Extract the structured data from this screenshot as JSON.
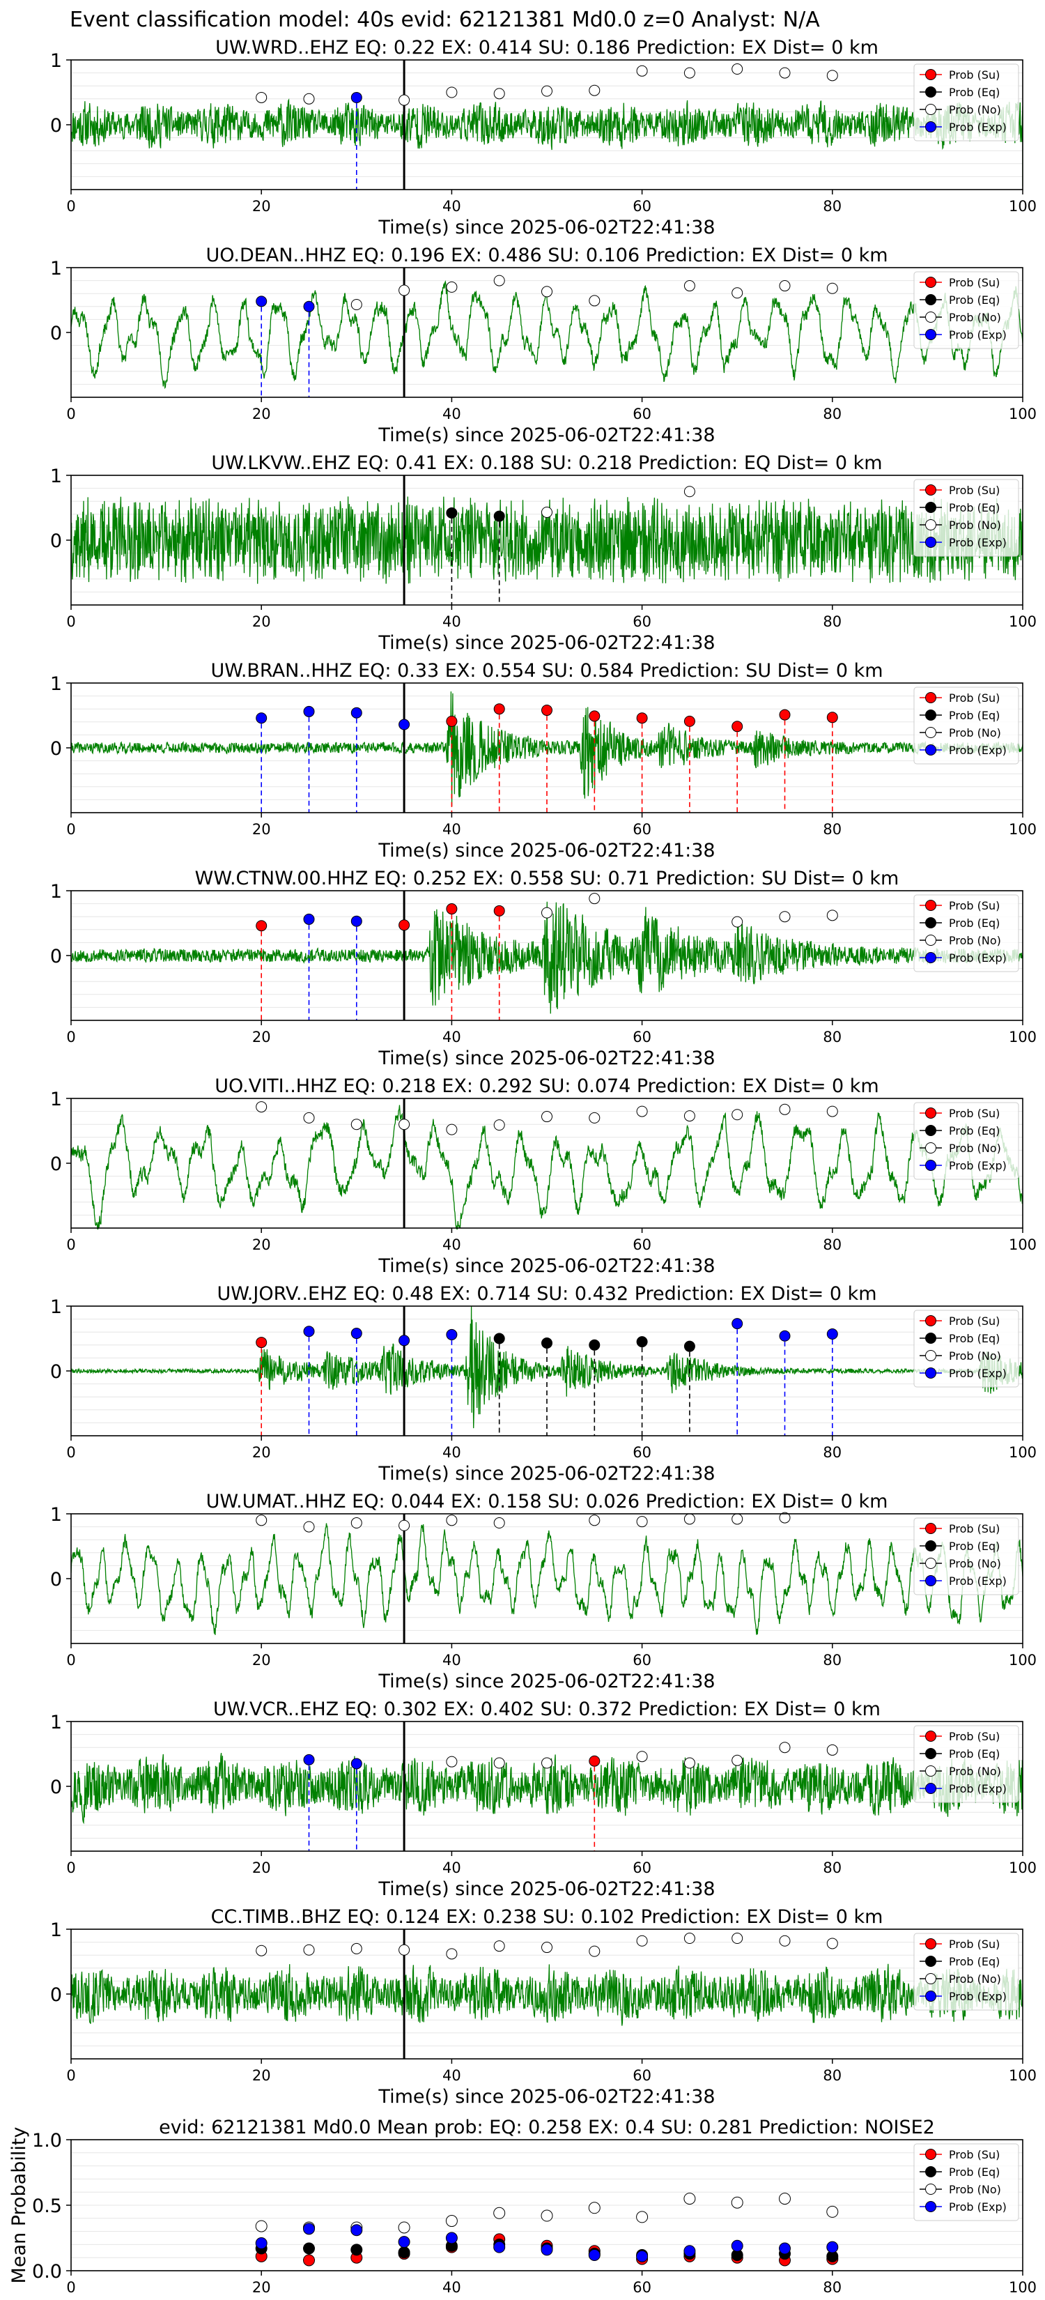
{
  "figure": {
    "suptitle": "Event classification model: 40s evid: 62121381 Md0.0 z=0 Analyst: N/A"
  },
  "legend": {
    "entries": [
      {
        "label": "Prob (Su)",
        "color": "#ff0000",
        "fill": "#ff0000"
      },
      {
        "label": "Prob (Eq)",
        "color": "#000000",
        "fill": "#000000"
      },
      {
        "label": "Prob (No)",
        "color": "#000000",
        "fill": "#ffffff"
      },
      {
        "label": "Prob (Exp)",
        "color": "#0000ff",
        "fill": "#0000ff"
      }
    ],
    "placement": "upper-right"
  },
  "colors": {
    "waveform": "#008000",
    "pick_line": "#000000",
    "su": "#ff0000",
    "eq": "#000000",
    "exp": "#0000ff",
    "noise_face": "#ffffff"
  },
  "chart_data": [
    {
      "type": "line",
      "title": "UW.WRD..EHZ   EQ: 0.22  EX: 0.414  SU: 0.186   Prediction: EX    Dist= 0 km",
      "xlabel": "Time(s) since 2025-06-02T22:41:38",
      "ylabel": "",
      "xlim": [
        0,
        100
      ],
      "ylim": [
        -1,
        1
      ],
      "xticks": [
        "0",
        "20",
        "40",
        "60",
        "80",
        "100"
      ],
      "yticks": [
        "1",
        "0"
      ],
      "pick_time": 35,
      "waveform": {
        "style": "noise",
        "amp": 0.32,
        "seed": 11,
        "end_spike": true
      },
      "windows": [
        {
          "t": 20,
          "cls": "No",
          "p": 0.42
        },
        {
          "t": 25,
          "cls": "No",
          "p": 0.4
        },
        {
          "t": 30,
          "cls": "Exp",
          "p": 0.42
        },
        {
          "t": 35,
          "cls": "No",
          "p": 0.38
        },
        {
          "t": 40,
          "cls": "No",
          "p": 0.5
        },
        {
          "t": 45,
          "cls": "No",
          "p": 0.48
        },
        {
          "t": 50,
          "cls": "No",
          "p": 0.52
        },
        {
          "t": 55,
          "cls": "No",
          "p": 0.53
        },
        {
          "t": 60,
          "cls": "No",
          "p": 0.83
        },
        {
          "t": 65,
          "cls": "No",
          "p": 0.8
        },
        {
          "t": 70,
          "cls": "No",
          "p": 0.86
        },
        {
          "t": 75,
          "cls": "No",
          "p": 0.8
        },
        {
          "t": 80,
          "cls": "No",
          "p": 0.76
        }
      ]
    },
    {
      "type": "line",
      "title": "UO.DEAN..HHZ   EQ: 0.196  EX: 0.486  SU: 0.106   Prediction: EX    Dist= 0 km",
      "xlabel": "Time(s) since 2025-06-02T22:41:38",
      "ylabel": "",
      "xlim": [
        0,
        100
      ],
      "ylim": [
        -1,
        1
      ],
      "xticks": [
        "0",
        "20",
        "40",
        "60",
        "80",
        "100"
      ],
      "yticks": [
        "1",
        "0"
      ],
      "pick_time": 35,
      "waveform": {
        "style": "wave",
        "amp": 0.55,
        "seed": 23,
        "period": 3.5
      },
      "windows": [
        {
          "t": 20,
          "cls": "Exp",
          "p": 0.48
        },
        {
          "t": 25,
          "cls": "Exp",
          "p": 0.4
        },
        {
          "t": 30,
          "cls": "No",
          "p": 0.43
        },
        {
          "t": 35,
          "cls": "No",
          "p": 0.65
        },
        {
          "t": 40,
          "cls": "No",
          "p": 0.7
        },
        {
          "t": 45,
          "cls": "No",
          "p": 0.8
        },
        {
          "t": 50,
          "cls": "No",
          "p": 0.63
        },
        {
          "t": 55,
          "cls": "No",
          "p": 0.49
        },
        {
          "t": 65,
          "cls": "No",
          "p": 0.72
        },
        {
          "t": 70,
          "cls": "No",
          "p": 0.61
        },
        {
          "t": 75,
          "cls": "No",
          "p": 0.72
        },
        {
          "t": 80,
          "cls": "No",
          "p": 0.68
        }
      ]
    },
    {
      "type": "line",
      "title": "UW.LKVW..EHZ   EQ: 0.41  EX: 0.188  SU: 0.218   Prediction: EQ    Dist= 0 km",
      "xlabel": "Time(s) since 2025-06-02T22:41:38",
      "ylabel": "",
      "xlim": [
        0,
        100
      ],
      "ylim": [
        -1,
        1
      ],
      "xticks": [
        "0",
        "20",
        "40",
        "60",
        "80",
        "100"
      ],
      "yticks": [
        "1",
        "0"
      ],
      "pick_time": 35,
      "waveform": {
        "style": "dense",
        "amp": 0.62,
        "seed": 37
      },
      "windows": [
        {
          "t": 40,
          "cls": "Eq",
          "p": 0.42
        },
        {
          "t": 45,
          "cls": "Eq",
          "p": 0.37
        },
        {
          "t": 50,
          "cls": "No",
          "p": 0.43
        },
        {
          "t": 65,
          "cls": "No",
          "p": 0.75
        }
      ]
    },
    {
      "type": "line",
      "title": "UW.BRAN..HHZ   EQ: 0.33  EX: 0.554  SU: 0.584   Prediction: SU    Dist= 0 km",
      "xlabel": "Time(s) since 2025-06-02T22:41:38",
      "ylabel": "",
      "xlim": [
        0,
        100
      ],
      "ylim": [
        -1,
        1
      ],
      "xticks": [
        "0",
        "20",
        "40",
        "60",
        "80",
        "100"
      ],
      "yticks": [
        "1",
        "0"
      ],
      "pick_time": 35,
      "waveform": {
        "style": "bursts",
        "amp": 0.08,
        "seed": 41,
        "bursts": [
          [
            40,
            0.9,
            3.5
          ],
          [
            54,
            0.85,
            2.5
          ],
          [
            62,
            0.35,
            3
          ],
          [
            72,
            0.25,
            3
          ]
        ]
      },
      "windows": [
        {
          "t": 20,
          "cls": "Exp",
          "p": 0.46
        },
        {
          "t": 25,
          "cls": "Exp",
          "p": 0.56
        },
        {
          "t": 30,
          "cls": "Exp",
          "p": 0.54
        },
        {
          "t": 35,
          "cls": "Exp",
          "p": 0.36
        },
        {
          "t": 40,
          "cls": "Su",
          "p": 0.41
        },
        {
          "t": 45,
          "cls": "Su",
          "p": 0.6
        },
        {
          "t": 50,
          "cls": "Su",
          "p": 0.58
        },
        {
          "t": 55,
          "cls": "Su",
          "p": 0.49
        },
        {
          "t": 60,
          "cls": "Su",
          "p": 0.46
        },
        {
          "t": 65,
          "cls": "Su",
          "p": 0.41
        },
        {
          "t": 70,
          "cls": "Su",
          "p": 0.33
        },
        {
          "t": 75,
          "cls": "Su",
          "p": 0.51
        },
        {
          "t": 80,
          "cls": "Su",
          "p": 0.47
        }
      ]
    },
    {
      "type": "line",
      "title": "WW.CTNW.00.HHZ   EQ: 0.252  EX: 0.558  SU: 0.71   Prediction: SU    Dist= 0 km",
      "xlabel": "Time(s) since 2025-06-02T22:41:38",
      "ylabel": "",
      "xlim": [
        0,
        100
      ],
      "ylim": [
        -1,
        1
      ],
      "xticks": [
        "0",
        "20",
        "40",
        "60",
        "80",
        "100"
      ],
      "yticks": [
        "1",
        "0"
      ],
      "pick_time": 35,
      "waveform": {
        "style": "bursts",
        "amp": 0.1,
        "seed": 53,
        "bursts": [
          [
            38,
            0.75,
            6
          ],
          [
            50,
            0.9,
            5
          ],
          [
            60,
            0.5,
            6
          ],
          [
            70,
            0.3,
            6
          ]
        ]
      },
      "windows": [
        {
          "t": 20,
          "cls": "Su",
          "p": 0.46
        },
        {
          "t": 25,
          "cls": "Exp",
          "p": 0.56
        },
        {
          "t": 30,
          "cls": "Exp",
          "p": 0.53
        },
        {
          "t": 35,
          "cls": "Su",
          "p": 0.47
        },
        {
          "t": 40,
          "cls": "Su",
          "p": 0.72
        },
        {
          "t": 45,
          "cls": "Su",
          "p": 0.69
        },
        {
          "t": 50,
          "cls": "No",
          "p": 0.66
        },
        {
          "t": 55,
          "cls": "No",
          "p": 0.88
        },
        {
          "t": 70,
          "cls": "No",
          "p": 0.52
        },
        {
          "t": 75,
          "cls": "No",
          "p": 0.6
        },
        {
          "t": 80,
          "cls": "No",
          "p": 0.62
        }
      ]
    },
    {
      "type": "line",
      "title": "UO.VITI..HHZ   EQ: 0.218  EX: 0.292  SU: 0.074   Prediction: EX    Dist= 0 km",
      "xlabel": "Time(s) since 2025-06-02T22:41:38",
      "ylabel": "",
      "xlim": [
        0,
        100
      ],
      "ylim": [
        -1,
        1
      ],
      "xticks": [
        "0",
        "20",
        "40",
        "60",
        "80",
        "100"
      ],
      "yticks": [
        "1",
        "0"
      ],
      "pick_time": 35,
      "waveform": {
        "style": "wave",
        "amp": 0.6,
        "seed": 67,
        "period": 4.2
      },
      "windows": [
        {
          "t": 20,
          "cls": "No",
          "p": 0.87
        },
        {
          "t": 25,
          "cls": "No",
          "p": 0.7
        },
        {
          "t": 30,
          "cls": "No",
          "p": 0.6
        },
        {
          "t": 35,
          "cls": "No",
          "p": 0.6
        },
        {
          "t": 40,
          "cls": "No",
          "p": 0.52
        },
        {
          "t": 45,
          "cls": "No",
          "p": 0.59
        },
        {
          "t": 50,
          "cls": "No",
          "p": 0.72
        },
        {
          "t": 55,
          "cls": "No",
          "p": 0.7
        },
        {
          "t": 60,
          "cls": "No",
          "p": 0.8
        },
        {
          "t": 65,
          "cls": "No",
          "p": 0.73
        },
        {
          "t": 70,
          "cls": "No",
          "p": 0.75
        },
        {
          "t": 75,
          "cls": "No",
          "p": 0.83
        },
        {
          "t": 80,
          "cls": "No",
          "p": 0.8
        }
      ]
    },
    {
      "type": "line",
      "title": "UW.JORV..EHZ   EQ: 0.48  EX: 0.714  SU: 0.432   Prediction: EX    Dist= 0 km",
      "xlabel": "Time(s) since 2025-06-02T22:41:38",
      "ylabel": "",
      "xlim": [
        0,
        100
      ],
      "ylim": [
        -1,
        1
      ],
      "xticks": [
        "0",
        "20",
        "40",
        "60",
        "80",
        "100"
      ],
      "yticks": [
        "1",
        "0"
      ],
      "pick_time": 35,
      "waveform": {
        "style": "bursts",
        "amp": 0.03,
        "seed": 79,
        "bursts": [
          [
            20,
            0.35,
            4
          ],
          [
            27,
            0.3,
            4
          ],
          [
            33,
            0.35,
            4
          ],
          [
            42,
            0.95,
            3
          ],
          [
            52,
            0.35,
            4
          ],
          [
            63,
            0.3,
            4
          ],
          [
            96,
            0.4,
            3
          ]
        ]
      },
      "windows": [
        {
          "t": 20,
          "cls": "Su",
          "p": 0.44
        },
        {
          "t": 25,
          "cls": "Exp",
          "p": 0.61
        },
        {
          "t": 30,
          "cls": "Exp",
          "p": 0.58
        },
        {
          "t": 35,
          "cls": "Exp",
          "p": 0.47
        },
        {
          "t": 40,
          "cls": "Exp",
          "p": 0.56
        },
        {
          "t": 45,
          "cls": "Eq",
          "p": 0.5
        },
        {
          "t": 50,
          "cls": "Eq",
          "p": 0.43
        },
        {
          "t": 55,
          "cls": "Eq",
          "p": 0.4
        },
        {
          "t": 60,
          "cls": "Eq",
          "p": 0.45
        },
        {
          "t": 65,
          "cls": "Eq",
          "p": 0.38
        },
        {
          "t": 70,
          "cls": "Exp",
          "p": 0.73
        },
        {
          "t": 75,
          "cls": "Exp",
          "p": 0.54
        },
        {
          "t": 80,
          "cls": "Exp",
          "p": 0.57
        }
      ]
    },
    {
      "type": "line",
      "title": "UW.UMAT..HHZ   EQ: 0.044  EX: 0.158  SU: 0.026   Prediction: EX    Dist= 0 km",
      "xlabel": "Time(s) since 2025-06-02T22:41:38",
      "ylabel": "",
      "xlim": [
        0,
        100
      ],
      "ylim": [
        -1,
        1
      ],
      "xticks": [
        "0",
        "20",
        "40",
        "60",
        "80",
        "100"
      ],
      "yticks": [
        "1",
        "0"
      ],
      "pick_time": 35,
      "waveform": {
        "style": "wave",
        "amp": 0.55,
        "seed": 83,
        "period": 2.6
      },
      "windows": [
        {
          "t": 20,
          "cls": "No",
          "p": 0.9
        },
        {
          "t": 25,
          "cls": "No",
          "p": 0.8
        },
        {
          "t": 30,
          "cls": "No",
          "p": 0.86
        },
        {
          "t": 35,
          "cls": "No",
          "p": 0.82
        },
        {
          "t": 40,
          "cls": "No",
          "p": 0.9
        },
        {
          "t": 45,
          "cls": "No",
          "p": 0.86
        },
        {
          "t": 55,
          "cls": "No",
          "p": 0.9
        },
        {
          "t": 60,
          "cls": "No",
          "p": 0.88
        },
        {
          "t": 65,
          "cls": "No",
          "p": 0.92
        },
        {
          "t": 70,
          "cls": "No",
          "p": 0.92
        },
        {
          "t": 75,
          "cls": "No",
          "p": 0.94
        }
      ]
    },
    {
      "type": "line",
      "title": "UW.VCR..EHZ   EQ: 0.302  EX: 0.402  SU: 0.372   Prediction: EX    Dist= 0 km",
      "xlabel": "Time(s) since 2025-06-02T22:41:38",
      "ylabel": "",
      "xlim": [
        0,
        100
      ],
      "ylim": [
        -1,
        1
      ],
      "xticks": [
        "0",
        "20",
        "40",
        "60",
        "80",
        "100"
      ],
      "yticks": [
        "1",
        "0"
      ],
      "pick_time": 35,
      "waveform": {
        "style": "noise",
        "amp": 0.42,
        "seed": 97
      },
      "windows": [
        {
          "t": 25,
          "cls": "Exp",
          "p": 0.41
        },
        {
          "t": 30,
          "cls": "Exp",
          "p": 0.35
        },
        {
          "t": 40,
          "cls": "No",
          "p": 0.38
        },
        {
          "t": 45,
          "cls": "No",
          "p": 0.36
        },
        {
          "t": 50,
          "cls": "No",
          "p": 0.36
        },
        {
          "t": 55,
          "cls": "Su",
          "p": 0.39
        },
        {
          "t": 60,
          "cls": "No",
          "p": 0.46
        },
        {
          "t": 65,
          "cls": "No",
          "p": 0.36
        },
        {
          "t": 70,
          "cls": "No",
          "p": 0.4
        },
        {
          "t": 75,
          "cls": "No",
          "p": 0.6
        },
        {
          "t": 80,
          "cls": "No",
          "p": 0.56
        }
      ]
    },
    {
      "type": "line",
      "title": "CC.TIMB..BHZ   EQ: 0.124  EX: 0.238  SU: 0.102   Prediction: EX    Dist= 0 km",
      "xlabel": "Time(s) since 2025-06-02T22:41:38",
      "ylabel": "",
      "xlim": [
        0,
        100
      ],
      "ylim": [
        -1,
        1
      ],
      "xticks": [
        "0",
        "20",
        "40",
        "60",
        "80",
        "100"
      ],
      "yticks": [
        "1",
        "0"
      ],
      "pick_time": 35,
      "waveform": {
        "style": "noise",
        "amp": 0.4,
        "seed": 101
      },
      "windows": [
        {
          "t": 20,
          "cls": "No",
          "p": 0.67
        },
        {
          "t": 25,
          "cls": "No",
          "p": 0.68
        },
        {
          "t": 30,
          "cls": "No",
          "p": 0.7
        },
        {
          "t": 35,
          "cls": "No",
          "p": 0.68
        },
        {
          "t": 40,
          "cls": "No",
          "p": 0.62
        },
        {
          "t": 45,
          "cls": "No",
          "p": 0.74
        },
        {
          "t": 50,
          "cls": "No",
          "p": 0.72
        },
        {
          "t": 55,
          "cls": "No",
          "p": 0.66
        },
        {
          "t": 60,
          "cls": "No",
          "p": 0.82
        },
        {
          "t": 65,
          "cls": "No",
          "p": 0.86
        },
        {
          "t": 70,
          "cls": "No",
          "p": 0.86
        },
        {
          "t": 75,
          "cls": "No",
          "p": 0.82
        },
        {
          "t": 80,
          "cls": "No",
          "p": 0.78
        }
      ]
    },
    {
      "type": "scatter",
      "title": "evid: 62121381  Md0.0   Mean prob:   EQ: 0.258  EX: 0.4  SU: 0.281   Prediction: NOISE2",
      "xlabel": "",
      "ylabel": "Mean Probability",
      "xlim": [
        0,
        100
      ],
      "ylim": [
        0,
        1
      ],
      "xticks": [
        "0",
        "20",
        "40",
        "60",
        "80",
        "100"
      ],
      "yticks": [
        "1.0",
        "0.5",
        "0.0"
      ],
      "x": [
        20,
        25,
        30,
        35,
        40,
        45,
        50,
        55,
        60,
        65,
        70,
        75,
        80
      ],
      "series": [
        {
          "name": "Prob (Su)",
          "cls": "Su",
          "values": [
            0.11,
            0.08,
            0.1,
            0.13,
            0.18,
            0.24,
            0.19,
            0.15,
            0.09,
            0.11,
            0.1,
            0.08,
            0.09
          ]
        },
        {
          "name": "Prob (Eq)",
          "cls": "Eq",
          "values": [
            0.17,
            0.17,
            0.16,
            0.14,
            0.19,
            0.2,
            0.17,
            0.13,
            0.12,
            0.13,
            0.12,
            0.13,
            0.11
          ]
        },
        {
          "name": "Prob (No)",
          "cls": "No",
          "values": [
            0.34,
            0.33,
            0.33,
            0.33,
            0.38,
            0.44,
            0.42,
            0.48,
            0.41,
            0.55,
            0.52,
            0.55,
            0.45
          ]
        },
        {
          "name": "Prob (Exp)",
          "cls": "Exp",
          "values": [
            0.21,
            0.32,
            0.31,
            0.22,
            0.25,
            0.18,
            0.16,
            0.12,
            0.11,
            0.15,
            0.19,
            0.17,
            0.18
          ]
        }
      ]
    }
  ]
}
